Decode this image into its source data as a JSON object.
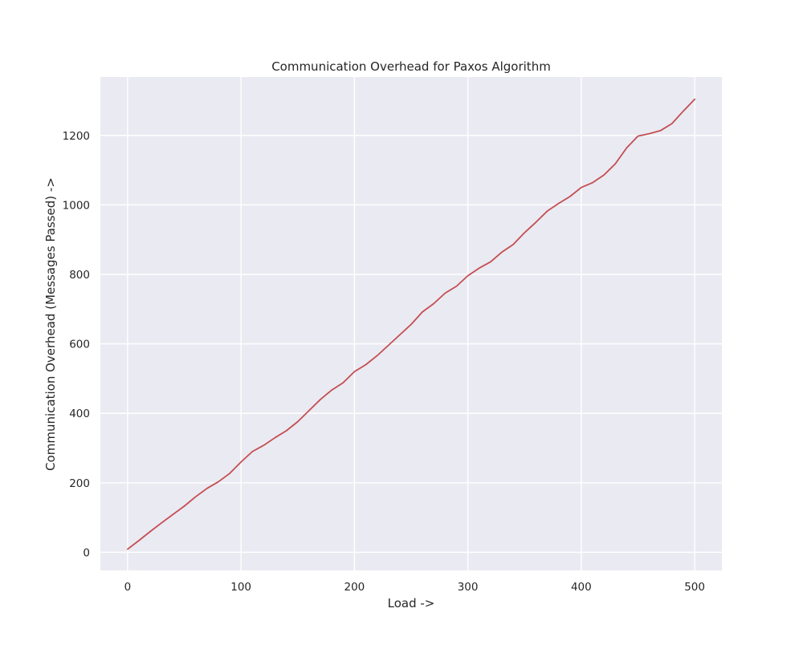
{
  "chart_data": {
    "type": "line",
    "title": "Communication Overhead for Paxos Algorithm",
    "xlabel": "Load ->",
    "ylabel": "Communication Overhead (Messages Passed) ->",
    "xlim": [
      -24,
      524
    ],
    "ylim": [
      -52,
      1368
    ],
    "xticks": [
      0,
      100,
      200,
      300,
      400,
      500
    ],
    "yticks": [
      0,
      200,
      400,
      600,
      800,
      1000,
      1200
    ],
    "grid": true,
    "background": "#eaeaf2",
    "grid_color": "#ffffff",
    "series": [
      {
        "color": "#c44e52",
        "x": [
          0,
          10,
          20,
          30,
          40,
          50,
          60,
          70,
          80,
          90,
          100,
          110,
          120,
          130,
          140,
          150,
          160,
          170,
          180,
          190,
          200,
          210,
          220,
          230,
          240,
          250,
          260,
          270,
          280,
          290,
          300,
          310,
          320,
          330,
          340,
          350,
          360,
          370,
          380,
          390,
          400,
          410,
          420,
          430,
          440,
          450,
          460,
          470,
          480,
          490,
          500
        ],
        "y": [
          9,
          34,
          60,
          85,
          109,
          133,
          160,
          184,
          203,
          227,
          260,
          290,
          308,
          330,
          350,
          376,
          408,
          440,
          467,
          488,
          520,
          540,
          566,
          596,
          626,
          656,
          692,
          716,
          746,
          766,
          796,
          818,
          836,
          864,
          886,
          920,
          950,
          982,
          1004,
          1024,
          1050,
          1064,
          1086,
          1118,
          1164,
          1198,
          1205,
          1214,
          1234,
          1270,
          1304
        ]
      }
    ]
  }
}
